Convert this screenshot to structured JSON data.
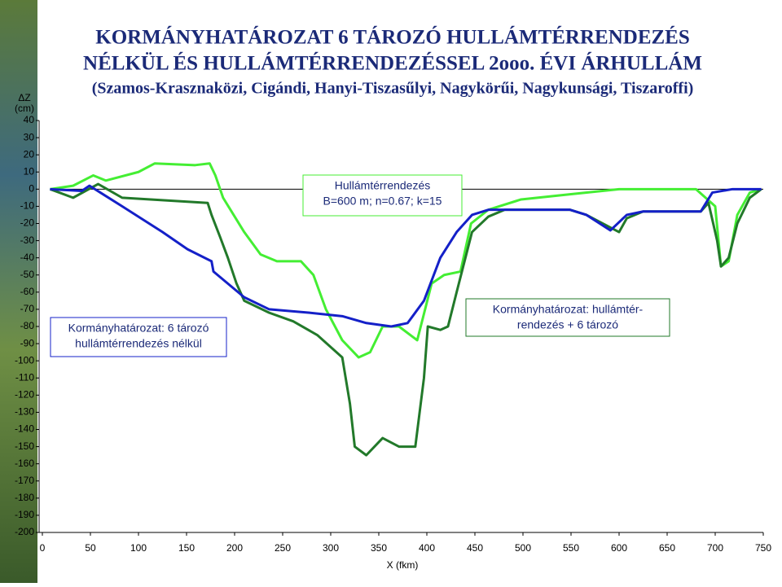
{
  "chart_data": {
    "type": "line",
    "title": [
      "KORMÁNYHATÁROZAT 6 TÁROZÓ HULLÁMTÉRRENDEZÉS",
      "NÉLKÜL ÉS HULLÁMTÉRRENDEZÉSSEL 2ooo. ÉVI ÁRHULLÁM"
    ],
    "subtitle": "(Szamos-Krasznaközi, Cigándi, Hanyi-Tiszasűlyi, Nagykörűi, Nagykunsági, Tiszaroffi)",
    "y_label": [
      "ΔZ",
      "(cm)"
    ],
    "x_label": "X (fkm)",
    "xlim": [
      0,
      750
    ],
    "xticks": [
      0,
      50,
      100,
      150,
      200,
      250,
      300,
      350,
      400,
      450,
      500,
      550,
      600,
      650,
      700,
      750
    ],
    "ylim": [
      -200,
      40
    ],
    "yticks": [
      40,
      30,
      20,
      10,
      0,
      -10,
      -20,
      -30,
      -40,
      -50,
      -60,
      -70,
      -80,
      -90,
      -100,
      -110,
      -120,
      -130,
      -140,
      -150,
      -160,
      -170,
      -180,
      -190,
      -200
    ],
    "annotations": [
      [
        "Hullámtérrendezés",
        "B=600 m; n=0.67; k=15"
      ],
      [
        "Kormányhatározat: 6 tározó",
        "hullámtérrendezés nélkül"
      ],
      [
        "Kormányhatározat: hullámtér-",
        "rendezés + 6 tározó"
      ]
    ],
    "series": [
      {
        "color": "#44ee33",
        "x": [
          8,
          32,
          53,
          66,
          100,
          117,
          159,
          174,
          180,
          188,
          210,
          227,
          244,
          269,
          282,
          295,
          312,
          329,
          341,
          354,
          371,
          390,
          405,
          418,
          435,
          446,
          464,
          498,
          549,
          600,
          680,
          700,
          706,
          714,
          723,
          736,
          748
        ],
        "values": [
          0,
          2,
          8,
          5,
          10,
          15,
          14,
          15,
          8,
          -5,
          -25,
          -38,
          -42,
          -42,
          -50,
          -70,
          -88,
          -98,
          -95,
          -80,
          -80,
          -88,
          -55,
          -50,
          -48,
          -20,
          -12,
          -6,
          -3,
          0,
          0,
          -10,
          -45,
          -42,
          -15,
          -2,
          0
        ]
      },
      {
        "color": "#22792a",
        "x": [
          8,
          32,
          58,
          83,
          172,
          176,
          185,
          193,
          202,
          210,
          236,
          261,
          286,
          312,
          320,
          325,
          337,
          354,
          371,
          388,
          397,
          401,
          414,
          422,
          431,
          447,
          464,
          481,
          549,
          566,
          600,
          608,
          625,
          685,
          693,
          702,
          706,
          714,
          723,
          736,
          748
        ],
        "values": [
          0,
          -5,
          3,
          -5,
          -8,
          -15,
          -28,
          -40,
          -55,
          -65,
          -72,
          -77,
          -85,
          -98,
          -125,
          -150,
          -155,
          -145,
          -150,
          -150,
          -110,
          -80,
          -82,
          -80,
          -60,
          -25,
          -16,
          -12,
          -12,
          -15,
          -25,
          -17,
          -13,
          -13,
          -8,
          -30,
          -45,
          -40,
          -20,
          -5,
          0
        ]
      },
      {
        "color": "#1420c8",
        "x": [
          8,
          41,
          49,
          83,
          125,
          151,
          176,
          178,
          210,
          236,
          278,
          312,
          337,
          363,
          380,
          397,
          414,
          431,
          447,
          464,
          481,
          549,
          566,
          591,
          608,
          625,
          685,
          697,
          718,
          748
        ],
        "values": [
          0,
          -1,
          2,
          -10,
          -25,
          -35,
          -42,
          -48,
          -63,
          -70,
          -72,
          -74,
          -78,
          -80,
          -78,
          -65,
          -40,
          -25,
          -15,
          -12,
          -12,
          -12,
          -15,
          -24,
          -15,
          -13,
          -13,
          -2,
          0,
          0
        ]
      }
    ]
  }
}
